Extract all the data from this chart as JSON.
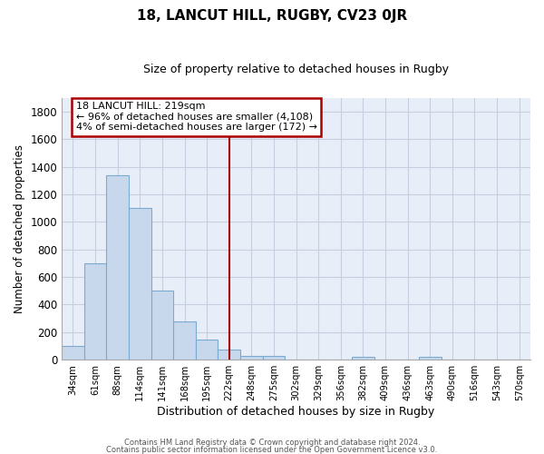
{
  "title": "18, LANCUT HILL, RUGBY, CV23 0JR",
  "subtitle": "Size of property relative to detached houses in Rugby",
  "xlabel": "Distribution of detached houses by size in Rugby",
  "ylabel": "Number of detached properties",
  "bar_labels": [
    "34sqm",
    "61sqm",
    "88sqm",
    "114sqm",
    "141sqm",
    "168sqm",
    "195sqm",
    "222sqm",
    "248sqm",
    "275sqm",
    "302sqm",
    "329sqm",
    "356sqm",
    "382sqm",
    "409sqm",
    "436sqm",
    "463sqm",
    "490sqm",
    "516sqm",
    "543sqm",
    "570sqm"
  ],
  "bar_values": [
    100,
    700,
    1340,
    1100,
    500,
    280,
    145,
    75,
    30,
    30,
    0,
    0,
    0,
    20,
    0,
    0,
    20,
    0,
    0,
    0,
    0
  ],
  "bar_color": "#c8d8ec",
  "bar_edge_color": "#7aaad0",
  "vline_color": "#aa0000",
  "annotation_title": "18 LANCUT HILL: 219sqm",
  "annotation_line1": "← 96% of detached houses are smaller (4,108)",
  "annotation_line2": "4% of semi-detached houses are larger (172) →",
  "annotation_box_color": "#ffffff",
  "annotation_box_edge": "#aa0000",
  "ylim": [
    0,
    1900
  ],
  "yticks": [
    0,
    200,
    400,
    600,
    800,
    1000,
    1200,
    1400,
    1600,
    1800
  ],
  "background_color": "#ffffff",
  "plot_bg_color": "#e8eef8",
  "grid_color": "#c5cfe0",
  "footer_line1": "Contains HM Land Registry data © Crown copyright and database right 2024.",
  "footer_line2": "Contains public sector information licensed under the Open Government Licence v3.0.",
  "vline_bar_index": 7
}
